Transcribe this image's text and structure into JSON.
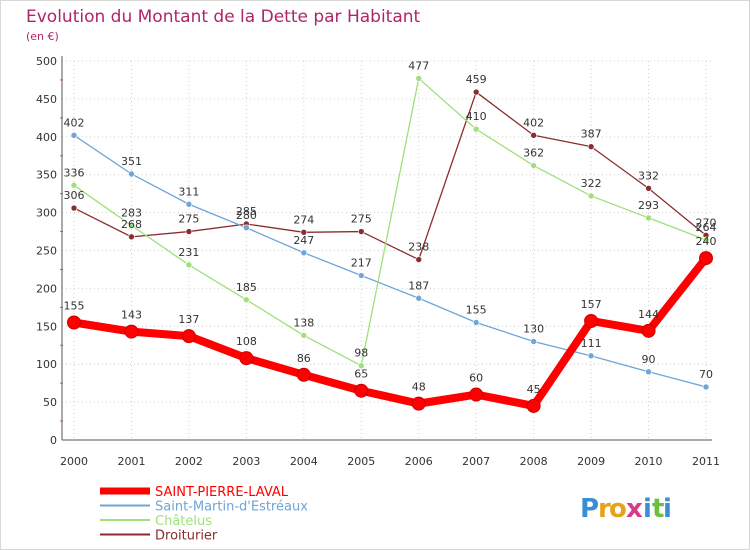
{
  "chart_data": {
    "type": "line",
    "title": "Evolution du Montant de la Dette par Habitant",
    "subtitle": "(en €)",
    "xlabel": "",
    "ylabel": "",
    "ylim": [
      0,
      500
    ],
    "yticks": [
      0,
      50,
      100,
      150,
      200,
      250,
      300,
      350,
      400,
      450,
      500
    ],
    "grid": true,
    "legend_position": "bottom-left",
    "categories": [
      "2000",
      "2001",
      "2002",
      "2003",
      "2004",
      "2005",
      "2006",
      "2007",
      "2008",
      "2009",
      "2010",
      "2011"
    ],
    "series": [
      {
        "name": "SAINT-PIERRE-LAVAL",
        "color": "#ff0000",
        "values": [
          155,
          143,
          137,
          108,
          86,
          65,
          48,
          60,
          45,
          157,
          144,
          240
        ],
        "labels": [
          "155",
          "143",
          "137",
          "108",
          "86",
          "65",
          "48",
          "60",
          "45",
          "157",
          "144",
          "240"
        ]
      },
      {
        "name": "Saint-Martin-d'Estréaux",
        "color": "#6fa5d8",
        "values": [
          402,
          351,
          311,
          280,
          247,
          217,
          187,
          155,
          130,
          111,
          90,
          70
        ],
        "labels": [
          "402",
          "351",
          "311",
          "280",
          "247",
          "217",
          "187",
          "155",
          "130",
          "111",
          "90",
          "70"
        ]
      },
      {
        "name": "Châtelus",
        "color": "#9ee07a",
        "values": [
          336,
          283,
          231,
          185,
          138,
          98,
          477,
          410,
          362,
          322,
          293,
          264
        ],
        "labels": [
          "336",
          "283",
          "231",
          "185",
          "138",
          "98",
          "477",
          "410",
          "362",
          "322",
          "293",
          "264"
        ]
      },
      {
        "name": "Droiturier",
        "color": "#8b2d2d",
        "values": [
          306,
          268,
          275,
          285,
          274,
          275,
          238,
          459,
          402,
          387,
          332,
          270
        ],
        "labels": [
          "306",
          "268",
          "275",
          "285",
          "274",
          "275",
          "238",
          "459",
          "402",
          "387",
          "332",
          "270"
        ]
      }
    ]
  },
  "logo": {
    "letters": [
      "P",
      "r",
      "o",
      "x",
      "i",
      "t",
      "i"
    ],
    "colors": [
      "#3a8ed6",
      "#e8a21a",
      "#e8a21a",
      "#d83a8a",
      "#3a8ed6",
      "#6bbf3a",
      "#3a8ed6"
    ]
  }
}
